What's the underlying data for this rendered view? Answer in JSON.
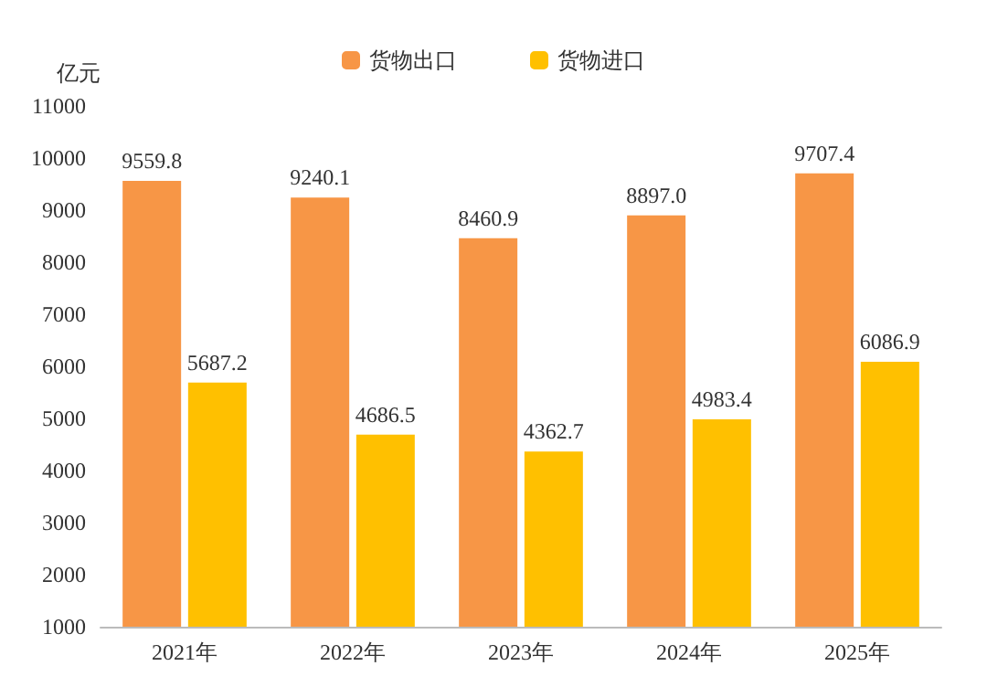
{
  "chart_data": {
    "type": "bar",
    "ylabel": "亿元",
    "categories": [
      "2021年",
      "2022年",
      "2023年",
      "2024年",
      "2025年"
    ],
    "series": [
      {
        "name": "货物出口",
        "color": "#f79646",
        "values": [
          9559.8,
          9240.1,
          8460.9,
          8897.0,
          9707.4
        ],
        "value_labels": [
          "9559.8",
          "9240.1",
          "8460.9",
          "8897.0",
          "9707.4"
        ]
      },
      {
        "name": "货物进口",
        "color": "#ffc000",
        "values": [
          5687.2,
          4686.5,
          4362.7,
          4983.4,
          6086.9
        ],
        "value_labels": [
          "5687.2",
          "4686.5",
          "4362.7",
          "4983.4",
          "6086.9"
        ]
      }
    ],
    "ylim": [
      1000,
      11000
    ],
    "yticks": [
      1000,
      2000,
      3000,
      4000,
      5000,
      6000,
      7000,
      8000,
      9000,
      10000,
      11000
    ],
    "grid": false,
    "legend": "top"
  }
}
